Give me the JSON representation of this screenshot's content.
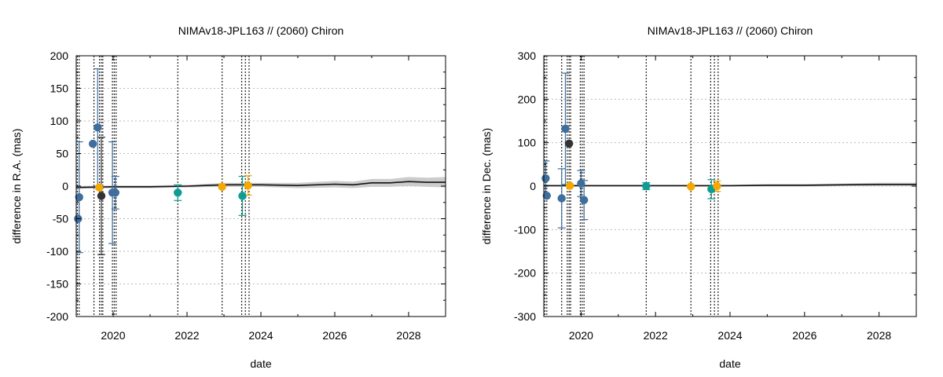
{
  "chart_data": [
    {
      "type": "scatter",
      "title": "NIMAv18-JPL163 // (2060) Chiron",
      "xlabel": "date",
      "ylabel": "difference in R.A. (mas)",
      "xlim": [
        2019.0,
        2029.0
      ],
      "ylim": [
        -200,
        200
      ],
      "xticks": [
        2020,
        2022,
        2024,
        2026,
        2028
      ],
      "xtick_labels": [
        "2020",
        "2022",
        "2024",
        "2026",
        "2028"
      ],
      "yticks": [
        -200,
        -150,
        -100,
        -50,
        0,
        50,
        100,
        150,
        200
      ],
      "ytick_labels": [
        "-200",
        "-150",
        "-100",
        "-50",
        "0",
        "50",
        "100",
        "150",
        "200"
      ],
      "grid": true,
      "colors": {
        "blue": "#3f6e9e",
        "black": "#333333",
        "orange": "#f5a800",
        "teal": "#0e9c93",
        "line": "#111111",
        "band": "#cccccc",
        "grid": "#bbbbbb"
      },
      "vlines": [
        2019.03,
        2019.08,
        2019.48,
        2019.63,
        2019.68,
        2019.72,
        2019.98,
        2020.03,
        2020.08,
        2021.75,
        2022.95,
        2023.48,
        2023.58,
        2023.68
      ],
      "model_line": {
        "x": [
          2019.0,
          2020,
          2021,
          2022,
          2023,
          2024,
          2025,
          2026,
          2026.5,
          2027,
          2027.5,
          2028,
          2028.5,
          2029.0
        ],
        "y": [
          -2,
          -1,
          -1,
          0,
          2,
          2,
          1,
          3,
          2,
          5,
          5,
          7,
          6,
          6
        ],
        "band": [
          2,
          2,
          2,
          2,
          3,
          3,
          4,
          5,
          5,
          6,
          6,
          7,
          7,
          8
        ]
      },
      "points": [
        {
          "x": 2019.05,
          "y": -50,
          "err": 0,
          "color": "blue"
        },
        {
          "x": 2019.08,
          "y": -17,
          "err": 85,
          "color": "blue"
        },
        {
          "x": 2019.45,
          "y": 65,
          "err": 0,
          "color": "blue"
        },
        {
          "x": 2019.58,
          "y": 90,
          "err": 90,
          "color": "blue"
        },
        {
          "x": 2019.62,
          "y": -2,
          "err": 0,
          "color": "orange"
        },
        {
          "x": 2019.68,
          "y": -15,
          "err": 90,
          "color": "black"
        },
        {
          "x": 2019.98,
          "y": -10,
          "err": 78,
          "color": "blue"
        },
        {
          "x": 2020.06,
          "y": -10,
          "err": 25,
          "color": "blue"
        },
        {
          "x": 2021.75,
          "y": -10,
          "err": 12,
          "color": "teal"
        },
        {
          "x": 2022.95,
          "y": -1,
          "err": 0,
          "color": "orange"
        },
        {
          "x": 2023.5,
          "y": -15,
          "err": 30,
          "color": "teal"
        },
        {
          "x": 2023.65,
          "y": 1,
          "err": 15,
          "color": "orange"
        }
      ]
    },
    {
      "type": "scatter",
      "title": "NIMAv18-JPL163 // (2060) Chiron",
      "xlabel": "date",
      "ylabel": "difference in Dec. (mas)",
      "xlim": [
        2019.0,
        2029.0
      ],
      "ylim": [
        -300,
        300
      ],
      "xticks": [
        2020,
        2022,
        2024,
        2026,
        2028
      ],
      "xtick_labels": [
        "2020",
        "2022",
        "2024",
        "2026",
        "2028"
      ],
      "yticks": [
        -300,
        -200,
        -100,
        0,
        100,
        200,
        300
      ],
      "ytick_labels": [
        "-300",
        "-200",
        "-100",
        "0",
        "100",
        "200",
        "300"
      ],
      "grid": true,
      "colors": {
        "blue": "#3f6e9e",
        "black": "#333333",
        "orange": "#f5a800",
        "teal": "#0e9c93",
        "line": "#111111",
        "band": "#cccccc",
        "grid": "#bbbbbb"
      },
      "vlines": [
        2019.03,
        2019.08,
        2019.48,
        2019.63,
        2019.68,
        2019.72,
        2019.98,
        2020.03,
        2020.08,
        2021.75,
        2022.95,
        2023.48,
        2023.58,
        2023.68
      ],
      "model_line": {
        "x": [
          2019.0,
          2020,
          2021,
          2022,
          2023,
          2024,
          2025,
          2026,
          2027,
          2028,
          2029.0
        ],
        "y": [
          1,
          1,
          1,
          1,
          1,
          1,
          2,
          2,
          3,
          4,
          4
        ],
        "band": [
          2,
          2,
          2,
          2,
          2,
          2,
          3,
          3,
          3,
          4,
          4
        ]
      },
      "points": [
        {
          "x": 2019.05,
          "y": 18,
          "err": 40,
          "color": "blue"
        },
        {
          "x": 2019.08,
          "y": -22,
          "err": 0,
          "color": "blue"
        },
        {
          "x": 2019.48,
          "y": -28,
          "err": 68,
          "color": "blue"
        },
        {
          "x": 2019.58,
          "y": 132,
          "err": 128,
          "color": "blue"
        },
        {
          "x": 2019.68,
          "y": 98,
          "err": 0,
          "color": "black"
        },
        {
          "x": 2019.7,
          "y": 1,
          "err": 0,
          "color": "orange"
        },
        {
          "x": 2020.0,
          "y": 6,
          "err": 30,
          "color": "blue"
        },
        {
          "x": 2020.08,
          "y": -32,
          "err": 45,
          "color": "blue"
        },
        {
          "x": 2021.75,
          "y": 0,
          "err": 8,
          "color": "teal"
        },
        {
          "x": 2022.95,
          "y": -1,
          "err": 0,
          "color": "orange"
        },
        {
          "x": 2023.5,
          "y": -7,
          "err": 22,
          "color": "teal"
        },
        {
          "x": 2023.65,
          "y": 0,
          "err": 12,
          "color": "orange"
        }
      ]
    }
  ]
}
